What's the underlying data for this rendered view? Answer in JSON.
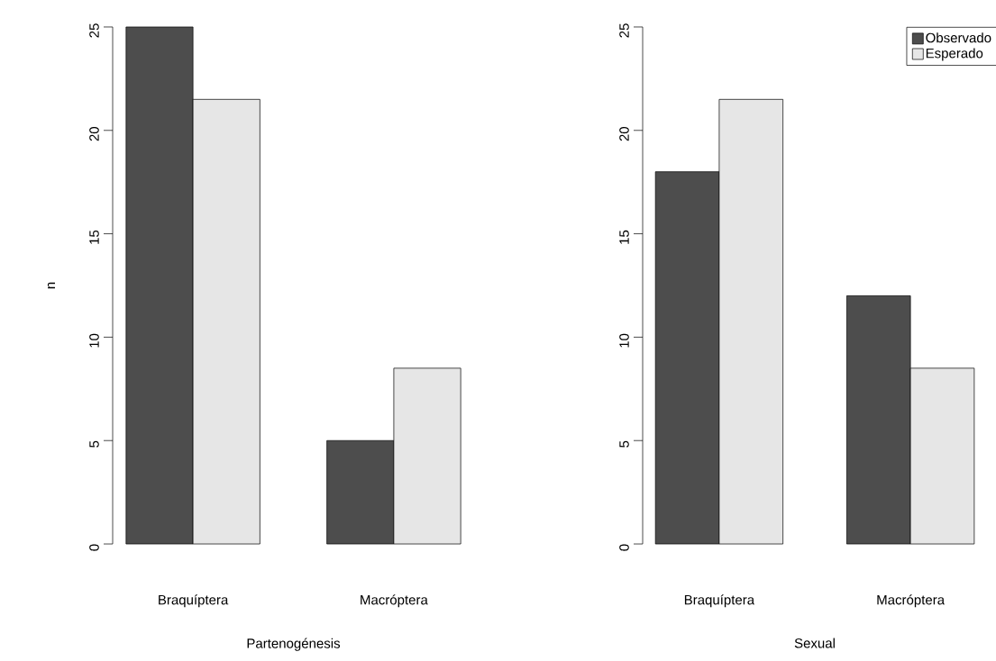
{
  "chart_data": [
    {
      "type": "bar",
      "categories": [
        "Braquíptera",
        "Macróptera"
      ],
      "xlabel": "Partenogénesis",
      "ylabel": "n",
      "ylim": [
        0,
        25
      ],
      "yticks": [
        0,
        5,
        10,
        15,
        20,
        25
      ],
      "series": [
        {
          "color": "#4d4d4d",
          "values": [
            25,
            5
          ]
        },
        {
          "color": "#e6e6e6",
          "values": [
            21.5,
            8.5
          ]
        }
      ]
    },
    {
      "type": "bar",
      "categories": [
        "Braquíptera",
        "Macróptera"
      ],
      "xlabel": "Sexual",
      "ylim": [
        0,
        25
      ],
      "yticks": [
        0,
        5,
        10,
        15,
        20,
        25
      ],
      "legend": "top right",
      "series": [
        {
          "name": "Observado",
          "color": "#4d4d4d",
          "values": [
            18,
            12
          ]
        },
        {
          "name": "Esperado",
          "color": "#e6e6e6",
          "values": [
            21.5,
            8.5
          ]
        }
      ]
    }
  ]
}
